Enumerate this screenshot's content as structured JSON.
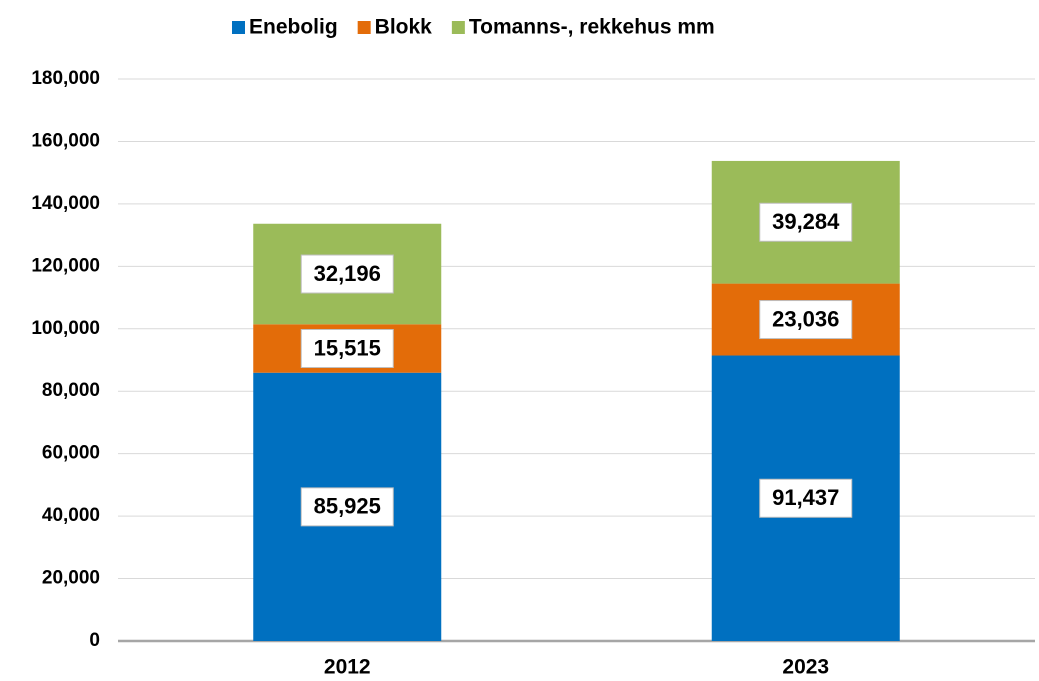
{
  "chart_data": {
    "type": "stacked_bar",
    "categories": [
      "2012",
      "2023"
    ],
    "series": [
      {
        "name": "Enebolig",
        "color": "#0070c0",
        "values": [
          85925,
          91437
        ],
        "value_labels": [
          "85,925",
          "91,437"
        ]
      },
      {
        "name": "Blokk",
        "color": "#e36c09",
        "values": [
          15515,
          23036
        ],
        "value_labels": [
          "15,515",
          "23,036"
        ]
      },
      {
        "name": "Tomanns-, rekkehus mm",
        "color": "#9bbb59",
        "values": [
          32196,
          39284
        ],
        "value_labels": [
          "32,196",
          "39,284"
        ]
      }
    ],
    "ylim": [
      0,
      180000
    ],
    "yticks": [
      0,
      {
        "value": 20000,
        "label": "20,000"
      },
      {
        "value": 40000,
        "label": "40,000"
      },
      {
        "value": 60000,
        "label": "60,000"
      },
      {
        "value": 80000,
        "label": "80,000"
      },
      {
        "value": 100000,
        "label": "100,000"
      },
      {
        "value": 120000,
        "label": "120,000"
      },
      {
        "value": 140000,
        "label": "140,000"
      },
      {
        "value": 160000,
        "label": "160,000"
      },
      {
        "value": 180000,
        "label": "180,000"
      }
    ],
    "grid": true,
    "legend": "top"
  }
}
